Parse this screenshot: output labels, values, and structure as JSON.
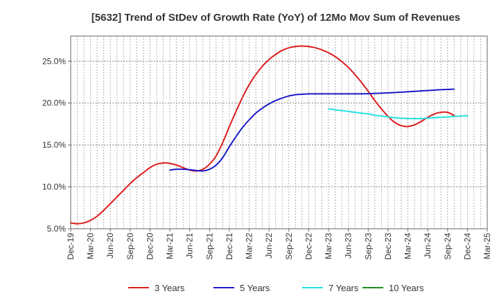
{
  "chart_data": {
    "type": "line",
    "title": "[5632]  Trend of StDev of Growth Rate (YoY) of 12Mo Mov Sum of Revenues",
    "xlabel": "",
    "ylabel": "",
    "ylim": [
      5.0,
      28.0
    ],
    "y_ticks": [
      5.0,
      10.0,
      15.0,
      20.0,
      25.0
    ],
    "y_tick_labels": [
      "5.0%",
      "10.0%",
      "15.0%",
      "20.0%",
      "25.0%"
    ],
    "x_start": "Dec-19",
    "x_end": "Mar-25",
    "x_tick_labels": [
      "Dec-19",
      "Mar-20",
      "Jun-20",
      "Sep-20",
      "Dec-20",
      "Mar-21",
      "Jun-21",
      "Sep-21",
      "Dec-21",
      "Mar-22",
      "Jun-22",
      "Sep-22",
      "Dec-22",
      "Mar-23",
      "Jun-23",
      "Sep-23",
      "Dec-23",
      "Mar-24",
      "Jun-24",
      "Sep-24",
      "Dec-24",
      "Mar-25"
    ],
    "grid": true,
    "legend_position": "bottom",
    "series": [
      {
        "name": "3 Years",
        "color": "#dd1c1c",
        "points": [
          [
            0,
            5.7
          ],
          [
            1,
            5.6
          ],
          [
            2,
            5.7
          ],
          [
            3,
            6.0
          ],
          [
            4,
            6.5
          ],
          [
            5,
            7.2
          ],
          [
            6,
            8.0
          ],
          [
            7,
            8.8
          ],
          [
            8,
            9.6
          ],
          [
            9,
            10.4
          ],
          [
            10,
            11.1
          ],
          [
            11,
            11.7
          ],
          [
            12,
            12.3
          ],
          [
            13,
            12.7
          ],
          [
            14,
            12.85
          ],
          [
            15,
            12.8
          ],
          [
            16,
            12.6
          ],
          [
            17,
            12.3
          ],
          [
            18,
            12.0
          ],
          [
            19,
            11.9
          ],
          [
            20,
            12.1
          ],
          [
            21,
            12.7
          ],
          [
            22,
            13.7
          ],
          [
            23,
            15.3
          ],
          [
            24,
            17.2
          ],
          [
            25,
            19.0
          ],
          [
            26,
            20.7
          ],
          [
            27,
            22.2
          ],
          [
            28,
            23.4
          ],
          [
            29,
            24.4
          ],
          [
            30,
            25.2
          ],
          [
            31,
            25.8
          ],
          [
            32,
            26.3
          ],
          [
            33,
            26.6
          ],
          [
            34,
            26.75
          ],
          [
            35,
            26.8
          ],
          [
            36,
            26.75
          ],
          [
            37,
            26.6
          ],
          [
            38,
            26.35
          ],
          [
            39,
            26.0
          ],
          [
            40,
            25.55
          ],
          [
            41,
            24.95
          ],
          [
            42,
            24.25
          ],
          [
            43,
            23.4
          ],
          [
            44,
            22.45
          ],
          [
            45,
            21.4
          ],
          [
            46,
            20.3
          ],
          [
            47,
            19.3
          ],
          [
            48,
            18.4
          ],
          [
            49,
            17.7
          ],
          [
            50,
            17.3
          ],
          [
            51,
            17.2
          ],
          [
            52,
            17.4
          ],
          [
            53,
            17.8
          ],
          [
            54,
            18.3
          ],
          [
            55,
            18.7
          ],
          [
            56,
            18.9
          ],
          [
            57,
            18.9
          ],
          [
            58,
            18.5
          ]
        ]
      },
      {
        "name": "5 Years",
        "color": "#1a1acc",
        "points": [
          [
            15,
            12.0
          ],
          [
            16,
            12.1
          ],
          [
            17,
            12.1
          ],
          [
            18,
            12.05
          ],
          [
            19,
            11.95
          ],
          [
            20,
            11.9
          ],
          [
            21,
            12.1
          ],
          [
            22,
            12.6
          ],
          [
            23,
            13.5
          ],
          [
            24,
            14.8
          ],
          [
            25,
            16.0
          ],
          [
            26,
            17.1
          ],
          [
            27,
            18.0
          ],
          [
            28,
            18.8
          ],
          [
            29,
            19.4
          ],
          [
            30,
            19.9
          ],
          [
            31,
            20.3
          ],
          [
            32,
            20.6
          ],
          [
            33,
            20.85
          ],
          [
            34,
            21.0
          ],
          [
            35,
            21.05
          ],
          [
            36,
            21.1
          ],
          [
            37,
            21.1
          ],
          [
            38,
            21.1
          ],
          [
            39,
            21.1
          ],
          [
            40,
            21.1
          ],
          [
            41,
            21.1
          ],
          [
            42,
            21.1
          ],
          [
            43,
            21.1
          ],
          [
            44,
            21.1
          ],
          [
            45,
            21.12
          ],
          [
            46,
            21.15
          ],
          [
            47,
            21.18
          ],
          [
            48,
            21.22
          ],
          [
            49,
            21.26
          ],
          [
            50,
            21.3
          ],
          [
            51,
            21.35
          ],
          [
            52,
            21.4
          ],
          [
            53,
            21.45
          ],
          [
            54,
            21.5
          ],
          [
            55,
            21.55
          ],
          [
            56,
            21.6
          ],
          [
            57,
            21.63
          ],
          [
            58,
            21.66
          ]
        ]
      },
      {
        "name": "7 Years",
        "color": "#22e2e2",
        "points": [
          [
            39,
            19.3
          ],
          [
            40,
            19.2
          ],
          [
            41,
            19.1
          ],
          [
            42,
            19.0
          ],
          [
            43,
            18.9
          ],
          [
            44,
            18.8
          ],
          [
            45,
            18.7
          ],
          [
            46,
            18.55
          ],
          [
            47,
            18.45
          ],
          [
            48,
            18.35
          ],
          [
            49,
            18.25
          ],
          [
            50,
            18.2
          ],
          [
            51,
            18.15
          ],
          [
            52,
            18.15
          ],
          [
            53,
            18.15
          ],
          [
            54,
            18.2
          ],
          [
            55,
            18.25
          ],
          [
            56,
            18.3
          ],
          [
            57,
            18.35
          ],
          [
            58,
            18.4
          ],
          [
            59,
            18.45
          ],
          [
            60,
            18.5
          ]
        ]
      },
      {
        "name": "10 Years",
        "color": "#1c8c1c",
        "points": []
      }
    ]
  }
}
